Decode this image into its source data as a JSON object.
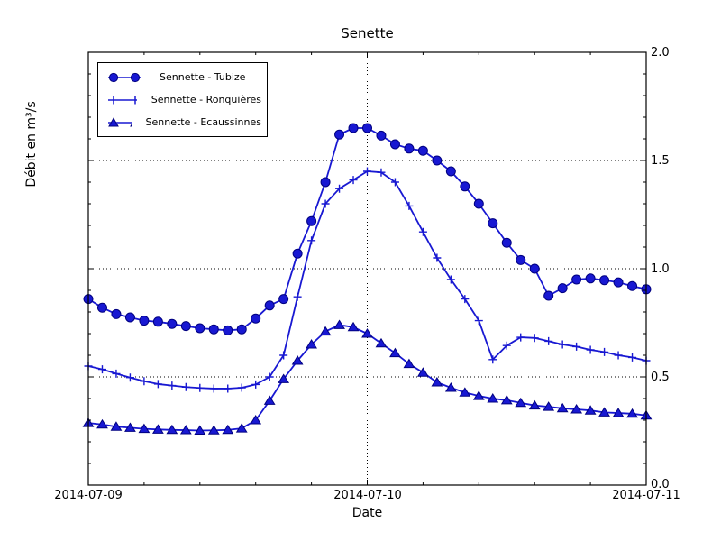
{
  "chart_data": {
    "type": "line",
    "title": "Senette",
    "xlabel": "Date",
    "ylabel": "Débit en m³/s",
    "x_tick_labels": [
      "2014-07-09",
      "2014-07-10",
      "2014-07-11"
    ],
    "x_major_ticks_days": [
      0,
      1,
      2
    ],
    "x_minor_tick_step_days": 0.2,
    "y_tick_labels": [
      "0.0",
      "0.5",
      "1.0",
      "1.5",
      "2.0"
    ],
    "y_major_ticks": [
      0,
      0.5,
      1.0,
      1.5,
      2.0
    ],
    "y_minor_tick_step": 0.1,
    "ylim": [
      0.0,
      2.0
    ],
    "xlim_days": [
      0,
      2
    ],
    "grid_x_days": [
      1
    ],
    "grid_y": [
      0.5,
      1.0,
      1.5
    ],
    "grid_style": "dotted",
    "legend_position": "upper-left",
    "line_color": "#1818d2",
    "marker_edge_color": "#000080",
    "x_start_day": 0,
    "x_step_days": 0.05,
    "series": [
      {
        "name": "Sennette - Tubize",
        "marker": "circle",
        "values": [
          0.86,
          0.82,
          0.79,
          0.775,
          0.76,
          0.755,
          0.745,
          0.735,
          0.725,
          0.72,
          0.715,
          0.72,
          0.77,
          0.83,
          0.86,
          1.07,
          1.22,
          1.4,
          1.62,
          1.65,
          1.65,
          1.615,
          1.575,
          1.555,
          1.545,
          1.5,
          1.45,
          1.38,
          1.3,
          1.21,
          1.12,
          1.04,
          1.0,
          0.875,
          0.91,
          0.95,
          0.955,
          0.947,
          0.937,
          0.92,
          0.905
        ]
      },
      {
        "name": "Sennette - Ronquières",
        "marker": "plus",
        "values": [
          0.55,
          0.535,
          0.515,
          0.497,
          0.48,
          0.467,
          0.46,
          0.453,
          0.449,
          0.446,
          0.446,
          0.45,
          0.465,
          0.5,
          0.6,
          0.87,
          1.13,
          1.3,
          1.37,
          1.41,
          1.45,
          1.445,
          1.4,
          1.29,
          1.17,
          1.05,
          0.95,
          0.86,
          0.76,
          0.58,
          0.645,
          0.683,
          0.68,
          0.665,
          0.65,
          0.64,
          0.625,
          0.615,
          0.6,
          0.59,
          0.575
        ]
      },
      {
        "name": "Sennette - Ecaussinnes",
        "marker": "triangle",
        "values": [
          0.287,
          0.28,
          0.27,
          0.265,
          0.26,
          0.257,
          0.255,
          0.254,
          0.252,
          0.253,
          0.255,
          0.262,
          0.3,
          0.39,
          0.49,
          0.575,
          0.65,
          0.71,
          0.74,
          0.73,
          0.7,
          0.655,
          0.61,
          0.56,
          0.52,
          0.475,
          0.45,
          0.428,
          0.412,
          0.4,
          0.392,
          0.38,
          0.368,
          0.362,
          0.355,
          0.35,
          0.345,
          0.336,
          0.333,
          0.33,
          0.322
        ]
      }
    ]
  }
}
